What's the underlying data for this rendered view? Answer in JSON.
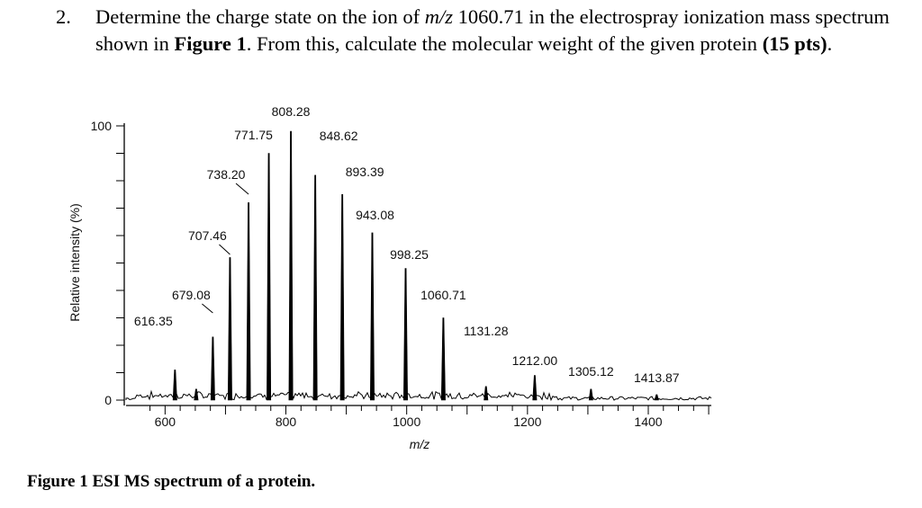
{
  "question": {
    "number": "2.",
    "prefix": "Determine the charge state on the ion of ",
    "mz_symbol": "m/z",
    "middle": " 1060.71 in the electrospray ionization mass spectrum shown in ",
    "figure_ref": "Figure 1",
    "suffix": ".  From this, calculate the molecular weight of the given protein ",
    "points": "(15 pts)",
    "end": "."
  },
  "caption": "Figure 1 ESI MS spectrum of a protein.",
  "chart_data": {
    "type": "bar",
    "xlabel": "m/z",
    "ylabel": "Relative intensity (%)",
    "xlim": [
      555,
      1510
    ],
    "ylim": [
      0,
      100
    ],
    "x_ticks": [
      600,
      800,
      1000,
      1200,
      1400
    ],
    "y_ticks": [
      0,
      100
    ],
    "grid": false,
    "peaks": [
      {
        "mz": 616.35,
        "intensity": 11,
        "label": "616.35"
      },
      {
        "mz": 651.5,
        "intensity": 4,
        "label": ""
      },
      {
        "mz": 679.08,
        "intensity": 23,
        "label": "679.08"
      },
      {
        "mz": 707.46,
        "intensity": 52,
        "label": "707.46"
      },
      {
        "mz": 738.2,
        "intensity": 72,
        "label": "738.20"
      },
      {
        "mz": 771.75,
        "intensity": 90,
        "label": "771.75"
      },
      {
        "mz": 808.28,
        "intensity": 98,
        "label": "808.28"
      },
      {
        "mz": 848.62,
        "intensity": 82,
        "label": "848.62"
      },
      {
        "mz": 893.39,
        "intensity": 75,
        "label": "893.39"
      },
      {
        "mz": 943.08,
        "intensity": 61,
        "label": "943.08"
      },
      {
        "mz": 998.25,
        "intensity": 48,
        "label": "998.25"
      },
      {
        "mz": 1060.71,
        "intensity": 30,
        "label": "1060.71"
      },
      {
        "mz": 1131.28,
        "intensity": 5,
        "label": "1131.28"
      },
      {
        "mz": 1212.0,
        "intensity": 9,
        "label": "1212.00"
      },
      {
        "mz": 1305.12,
        "intensity": 4,
        "label": "1305.12"
      },
      {
        "mz": 1413.87,
        "intensity": 2,
        "label": "1413.87"
      }
    ]
  }
}
